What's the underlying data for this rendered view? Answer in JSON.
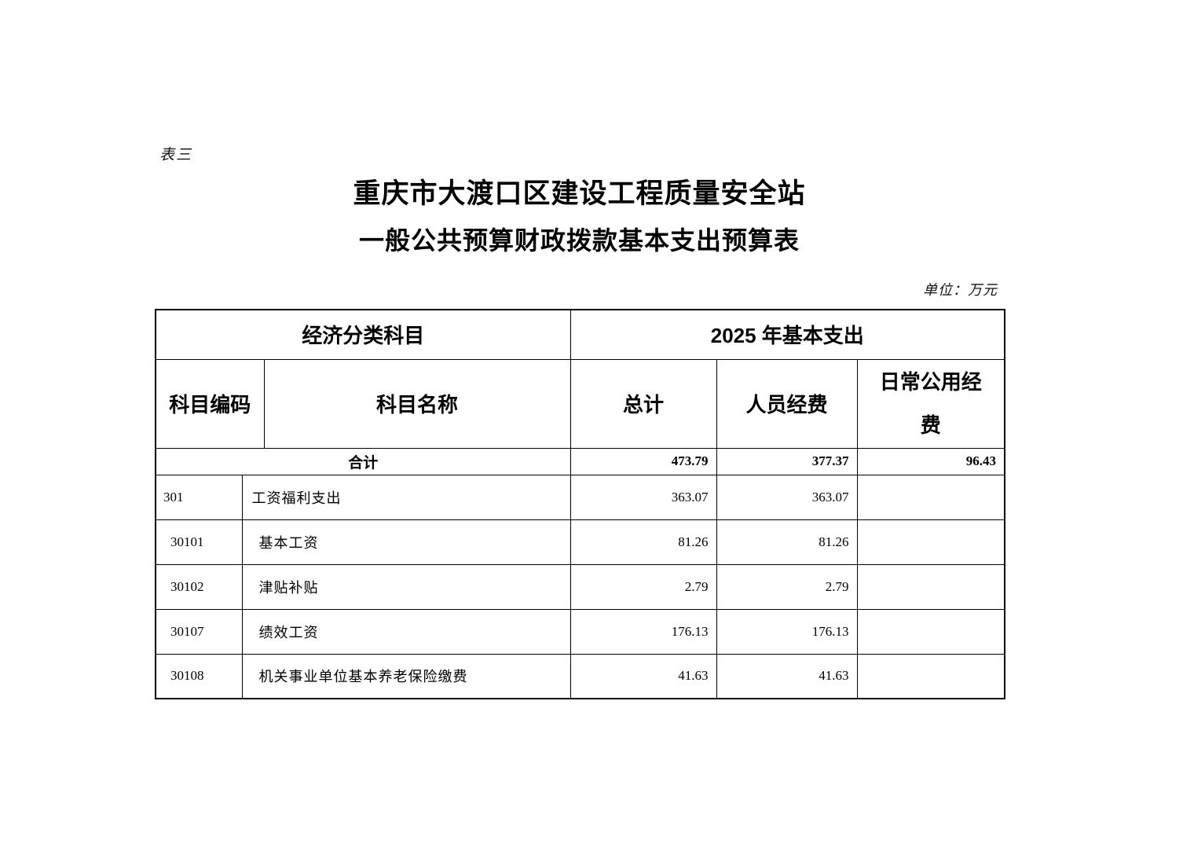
{
  "page": {
    "tag": "表三",
    "title_line1": "重庆市大渡口区建设工程质量安全站",
    "title_line2": "一般公共预算财政拨款基本支出预算表",
    "unit_note": "单位：万元"
  },
  "table": {
    "header": {
      "group_left": "经济分类科目",
      "group_right": "2025 年基本支出",
      "col_code": "科目编码",
      "col_name": "科目名称",
      "col_total": "总计",
      "col_personnel": "人员经费",
      "col_daily": "日常公用经费"
    },
    "total_row": {
      "label": "合计",
      "total": "473.79",
      "personnel": "377.37",
      "daily": "96.43"
    },
    "rows": [
      {
        "level": 1,
        "code": "301",
        "name": "工资福利支出",
        "total": "363.07",
        "personnel": "363.07",
        "daily": ""
      },
      {
        "level": 2,
        "code": "30101",
        "name": "基本工资",
        "total": "81.26",
        "personnel": "81.26",
        "daily": ""
      },
      {
        "level": 2,
        "code": "30102",
        "name": "津贴补贴",
        "total": "2.79",
        "personnel": "2.79",
        "daily": ""
      },
      {
        "level": 2,
        "code": "30107",
        "name": "绩效工资",
        "total": "176.13",
        "personnel": "176.13",
        "daily": ""
      },
      {
        "level": 2,
        "code": "30108",
        "name": "机关事业单位基本养老保险缴费",
        "total": "41.63",
        "personnel": "41.63",
        "daily": ""
      }
    ]
  },
  "colors": {
    "text": "#000000",
    "background": "#ffffff",
    "border": "#000000"
  }
}
